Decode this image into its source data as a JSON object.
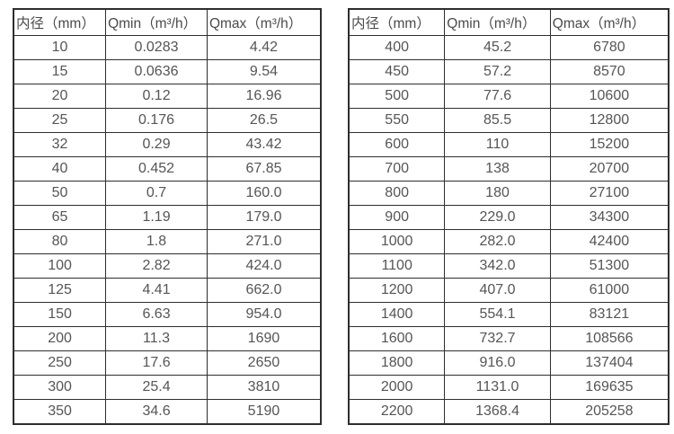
{
  "colors": {
    "background": "#ffffff",
    "border": "#2e2e2e",
    "header_text": "#4a4a4a",
    "cell_text": "#555555"
  },
  "tables": [
    {
      "id": "flow-table-small-diameters",
      "headers": [
        "内径（mm）",
        "Qmin（m³/h）",
        "Qmax（m³/h）"
      ],
      "rows": [
        [
          "10",
          "0.0283",
          "4.42"
        ],
        [
          "15",
          "0.0636",
          "9.54"
        ],
        [
          "20",
          "0.12",
          "16.96"
        ],
        [
          "25",
          "0.176",
          "26.5"
        ],
        [
          "32",
          "0.29",
          "43.42"
        ],
        [
          "40",
          "0.452",
          "67.85"
        ],
        [
          "50",
          "0.7",
          "160.0"
        ],
        [
          "65",
          "1.19",
          "179.0"
        ],
        [
          "80",
          "1.8",
          "271.0"
        ],
        [
          "100",
          "2.82",
          "424.0"
        ],
        [
          "125",
          "4.41",
          "662.0"
        ],
        [
          "150",
          "6.63",
          "954.0"
        ],
        [
          "200",
          "11.3",
          "1690"
        ],
        [
          "250",
          "17.6",
          "2650"
        ],
        [
          "300",
          "25.4",
          "3810"
        ],
        [
          "350",
          "34.6",
          "5190"
        ]
      ]
    },
    {
      "id": "flow-table-large-diameters",
      "headers": [
        "内径（mm）",
        "Qmin（m³/h）",
        "Qmax（m³/h）"
      ],
      "rows": [
        [
          "400",
          "45.2",
          "6780"
        ],
        [
          "450",
          "57.2",
          "8570"
        ],
        [
          "500",
          "77.6",
          "10600"
        ],
        [
          "550",
          "85.5",
          "12800"
        ],
        [
          "600",
          "110",
          "15200"
        ],
        [
          "700",
          "138",
          "20700"
        ],
        [
          "800",
          "180",
          "27100"
        ],
        [
          "900",
          "229.0",
          "34300"
        ],
        [
          "1000",
          "282.0",
          "42400"
        ],
        [
          "1100",
          "342.0",
          "51300"
        ],
        [
          "1200",
          "407.0",
          "61000"
        ],
        [
          "1400",
          "554.1",
          "83121"
        ],
        [
          "1600",
          "732.7",
          "108566"
        ],
        [
          "1800",
          "916.0",
          "137404"
        ],
        [
          "2000",
          "1131.0",
          "169635"
        ],
        [
          "2200",
          "1368.4",
          "205258"
        ]
      ]
    }
  ]
}
